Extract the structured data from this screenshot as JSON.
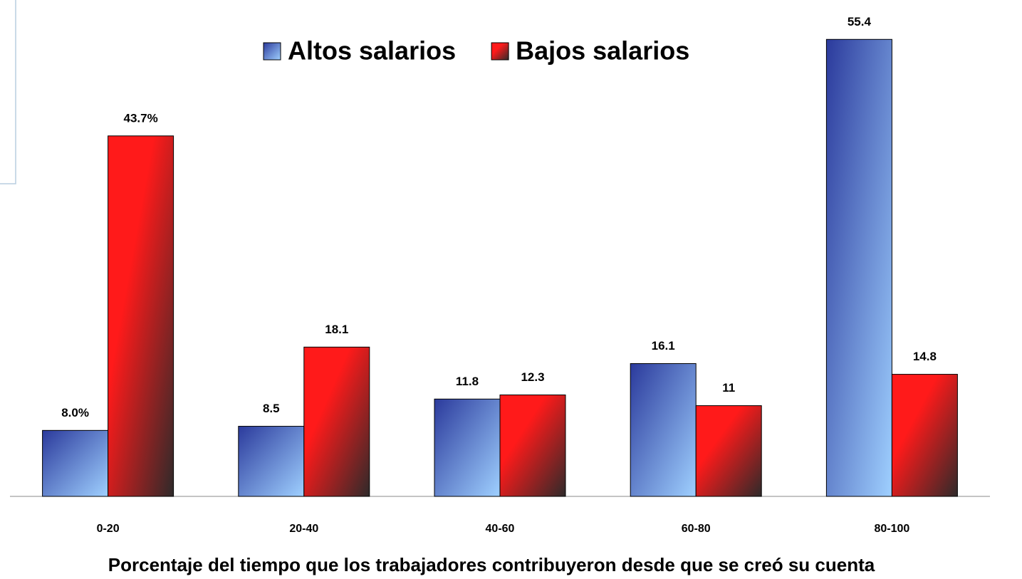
{
  "chart_data": {
    "type": "bar",
    "x_label": "Porcentaje del tiempo que los trabajadores contribuyeron desde que se creó su cuenta",
    "categories": [
      "0-20",
      "20-40",
      "40-60",
      "60-80",
      "80-100"
    ],
    "series": [
      {
        "name": "Altos salarios",
        "color": "#2b3a9c",
        "values": [
          8.0,
          8.5,
          11.8,
          16.1,
          55.4
        ],
        "value_labels": [
          "8.0%",
          "8.5",
          "11.8",
          "16.1",
          "55.4"
        ]
      },
      {
        "name": "Bajos salarios",
        "color": "#ff1a1a",
        "values": [
          43.7,
          18.1,
          12.3,
          11,
          14.8
        ],
        "value_labels": [
          "43.7%",
          "18.1",
          "12.3",
          "11",
          "14.8"
        ]
      }
    ],
    "ylim": [
      0,
      60
    ],
    "legend": "top"
  }
}
